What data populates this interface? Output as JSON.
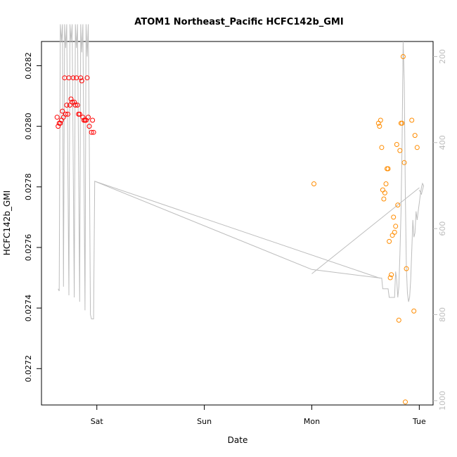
{
  "chart_data": {
    "type": "scatter",
    "title": "ATOM1 Northeast_Pacific HCFC142b_GMI",
    "xlabel": "Date",
    "ylabel": "HCFC142b_GMI",
    "xlim": [
      -0.43,
      3.05
    ],
    "ylim": [
      0.02708,
      0.02828
    ],
    "x_ticks": [
      {
        "value": 0,
        "label": "Sat"
      },
      {
        "value": 1,
        "label": "Sun"
      },
      {
        "value": 2,
        "label": "Mon"
      },
      {
        "value": 3,
        "label": "Tue"
      }
    ],
    "y_ticks": [
      {
        "value": 0.0272,
        "label": "0.0272"
      },
      {
        "value": 0.0274,
        "label": "0.0274"
      },
      {
        "value": 0.0276,
        "label": "0.0276"
      },
      {
        "value": 0.0278,
        "label": "0.0278"
      },
      {
        "value": 0.028,
        "label": "0.0280"
      },
      {
        "value": 0.0282,
        "label": "0.0282"
      }
    ],
    "y2lim": [
      1010,
      165
    ],
    "y2_ticks": [
      {
        "value": 200,
        "label": "200"
      },
      {
        "value": 400,
        "label": "400"
      },
      {
        "value": 600,
        "label": "600"
      },
      {
        "value": 800,
        "label": "800"
      },
      {
        "value": 1000,
        "label": "1000"
      }
    ],
    "colors": {
      "red_points": "#ff0000",
      "orange_points": "#ff8c00",
      "pressure_line": "#bdbdbd"
    },
    "series": [
      {
        "marker": "circle-open",
        "color": "#ff0000",
        "points": [
          [
            -0.37,
            0.02803
          ],
          [
            -0.36,
            0.028
          ],
          [
            -0.35,
            0.02801
          ],
          [
            -0.34,
            0.02801
          ],
          [
            -0.33,
            0.02802
          ],
          [
            -0.32,
            0.02805
          ],
          [
            -0.31,
            0.02803
          ],
          [
            -0.3,
            0.02816
          ],
          [
            -0.29,
            0.02804
          ],
          [
            -0.28,
            0.02807
          ],
          [
            -0.27,
            0.02804
          ],
          [
            -0.26,
            0.02816
          ],
          [
            -0.25,
            0.02807
          ],
          [
            -0.24,
            0.02809
          ],
          [
            -0.23,
            0.02808
          ],
          [
            -0.22,
            0.02816
          ],
          [
            -0.21,
            0.02808
          ],
          [
            -0.2,
            0.02807
          ],
          [
            -0.19,
            0.02816
          ],
          [
            -0.18,
            0.02807
          ],
          [
            -0.17,
            0.02804
          ],
          [
            -0.16,
            0.02804
          ],
          [
            -0.15,
            0.02816
          ],
          [
            -0.14,
            0.02815
          ],
          [
            -0.13,
            0.02803
          ],
          [
            -0.12,
            0.02802
          ],
          [
            -0.11,
            0.02802
          ],
          [
            -0.1,
            0.02802
          ],
          [
            -0.09,
            0.02816
          ],
          [
            -0.08,
            0.02803
          ],
          [
            -0.07,
            0.028
          ],
          [
            -0.05,
            0.02798
          ],
          [
            -0.04,
            0.02802
          ],
          [
            -0.03,
            0.02798
          ]
        ]
      },
      {
        "marker": "circle-open",
        "color": "#ff8c00",
        "points": [
          [
            2.02,
            0.02781
          ],
          [
            2.62,
            0.02801
          ],
          [
            2.63,
            0.028
          ],
          [
            2.64,
            0.02802
          ],
          [
            2.65,
            0.02793
          ],
          [
            2.66,
            0.02779
          ],
          [
            2.67,
            0.02776
          ],
          [
            2.68,
            0.02778
          ],
          [
            2.69,
            0.02781
          ],
          [
            2.7,
            0.02786
          ],
          [
            2.71,
            0.02786
          ],
          [
            2.72,
            0.02762
          ],
          [
            2.73,
            0.0275
          ],
          [
            2.74,
            0.02751
          ],
          [
            2.75,
            0.02764
          ],
          [
            2.76,
            0.0277
          ],
          [
            2.77,
            0.02765
          ],
          [
            2.78,
            0.02767
          ],
          [
            2.79,
            0.02794
          ],
          [
            2.8,
            0.02774
          ],
          [
            2.81,
            0.02736
          ],
          [
            2.82,
            0.02792
          ],
          [
            2.83,
            0.02801
          ],
          [
            2.84,
            0.02801
          ],
          [
            2.85,
            0.02823
          ],
          [
            2.86,
            0.02788
          ],
          [
            2.87,
            0.02709
          ],
          [
            2.88,
            0.02753
          ],
          [
            2.93,
            0.02802
          ],
          [
            2.95,
            0.02739
          ],
          [
            2.96,
            0.02797
          ],
          [
            2.98,
            0.02793
          ]
        ]
      },
      {
        "type": "line",
        "axis": "right",
        "color": "#bdbdbd",
        "points": [
          [
            -0.36,
            740
          ],
          [
            -0.35,
            745
          ],
          [
            -0.34,
            125
          ],
          [
            -0.33,
            165
          ],
          [
            -0.32,
            125
          ],
          [
            -0.31,
            735
          ],
          [
            -0.3,
            125
          ],
          [
            -0.29,
            180
          ],
          [
            -0.28,
            125
          ],
          [
            -0.26,
            755
          ],
          [
            -0.25,
            125
          ],
          [
            -0.24,
            165
          ],
          [
            -0.23,
            125
          ],
          [
            -0.21,
            760
          ],
          [
            -0.2,
            125
          ],
          [
            -0.19,
            180
          ],
          [
            -0.18,
            125
          ],
          [
            -0.16,
            770
          ],
          [
            -0.15,
            125
          ],
          [
            -0.14,
            190
          ],
          [
            -0.13,
            125
          ],
          [
            -0.11,
            790
          ],
          [
            -0.1,
            125
          ],
          [
            -0.09,
            200
          ],
          [
            -0.08,
            125
          ],
          [
            -0.07,
            400
          ],
          [
            -0.06,
            800
          ],
          [
            -0.05,
            810
          ],
          [
            -0.03,
            810
          ],
          [
            -0.02,
            490
          ],
          [
            2.63,
            715
          ],
          [
            2.65,
            715
          ],
          [
            2.66,
            740
          ],
          [
            2.71,
            740
          ],
          [
            2.72,
            760
          ],
          [
            2.77,
            760
          ],
          [
            2.78,
            700
          ],
          [
            2.79,
            720
          ],
          [
            2.8,
            760
          ],
          [
            2.81,
            735
          ],
          [
            2.82,
            660
          ],
          [
            2.83,
            560
          ],
          [
            2.84,
            400
          ],
          [
            2.85,
            165
          ],
          [
            2.86,
            260
          ],
          [
            2.87,
            520
          ],
          [
            2.88,
            690
          ],
          [
            2.89,
            750
          ],
          [
            2.9,
            770
          ],
          [
            2.91,
            760
          ],
          [
            2.92,
            720
          ],
          [
            2.93,
            650
          ],
          [
            2.94,
            580
          ],
          [
            2.95,
            620
          ],
          [
            2.96,
            610
          ],
          [
            2.97,
            560
          ],
          [
            2.98,
            580
          ],
          [
            2.99,
            560
          ],
          [
            3.0,
            540
          ],
          [
            3.01,
            520
          ],
          [
            3.02,
            505
          ],
          [
            3.03,
            495
          ],
          [
            3.04,
            500
          ],
          [
            3.02,
            520
          ],
          [
            3.0,
            510
          ]
        ]
      },
      {
        "type": "line",
        "axis": "right",
        "color": "#bdbdbd",
        "points": [
          [
            -0.02,
            490
          ],
          [
            2.0,
            695
          ],
          [
            2.64,
            715
          ]
        ]
      },
      {
        "type": "line",
        "axis": "right",
        "color": "#bdbdbd",
        "points": [
          [
            2.0,
            705
          ],
          [
            3.0,
            505
          ]
        ]
      }
    ]
  }
}
